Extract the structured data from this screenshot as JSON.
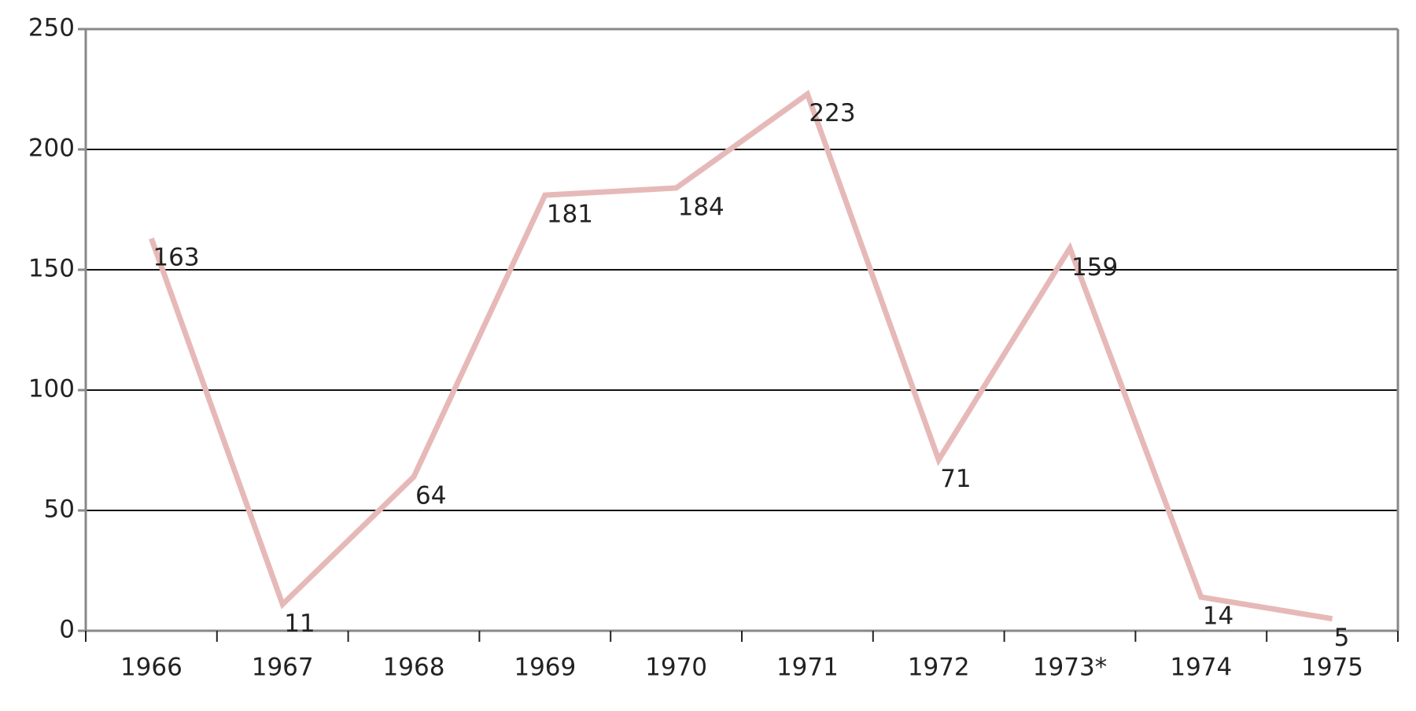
{
  "chart_data": {
    "type": "line",
    "categories": [
      "1966",
      "1967",
      "1968",
      "1969",
      "1970",
      "1971",
      "1972",
      "1973*",
      "1974",
      "1975"
    ],
    "values": [
      163,
      11,
      64,
      181,
      184,
      223,
      71,
      159,
      14,
      5
    ],
    "color": "#e6b9b8",
    "ylim": [
      0,
      250
    ],
    "yticks": [
      0,
      50,
      100,
      150,
      200,
      250
    ],
    "grid": true
  }
}
